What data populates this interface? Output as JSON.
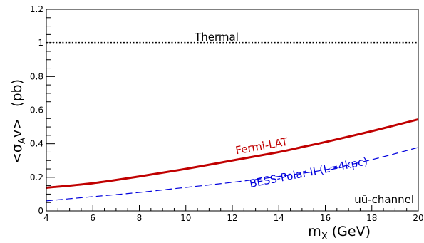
{
  "chart_data": {
    "type": "line",
    "xlabel_main": "m",
    "xlabel_sub": "X",
    "xlabel_rest": " (GeV)",
    "ylabel_pre": "<σ",
    "ylabel_sub": "A",
    "ylabel_post": "v>",
    "ylabel_units": "(pb)",
    "xlim": [
      4,
      20
    ],
    "ylim": [
      0,
      1.2
    ],
    "x_ticks": [
      4,
      6,
      8,
      10,
      12,
      14,
      16,
      18,
      20
    ],
    "y_ticks": [
      0,
      0.2,
      0.4,
      0.6,
      0.8,
      1,
      1.2
    ],
    "x_tick_labels": [
      "4",
      "6",
      "8",
      "10",
      "12",
      "14",
      "16",
      "18",
      "20"
    ],
    "y_tick_labels": [
      "0",
      "0.2",
      "0.4",
      "0.6",
      "0.8",
      "1",
      "1.2"
    ],
    "channel_label": "uū-channel",
    "series": [
      {
        "name": "Thermal",
        "style": "dotted",
        "color": "#000000",
        "x": [
          4,
          20
        ],
        "y": [
          1.0,
          1.0
        ]
      },
      {
        "name": "Fermi-LAT",
        "style": "solid",
        "color": "#c00000",
        "x": [
          4,
          6,
          8,
          10,
          12,
          14,
          15,
          16,
          18,
          20
        ],
        "y": [
          0.138,
          0.165,
          0.205,
          0.25,
          0.3,
          0.35,
          0.38,
          0.41,
          0.475,
          0.545
        ]
      },
      {
        "name": "BESS-Polar II (L=4kpc)",
        "style": "dashed",
        "color": "#0000dd",
        "x": [
          4,
          6,
          8,
          10,
          12,
          14,
          16,
          18,
          20
        ],
        "y": [
          0.06,
          0.085,
          0.11,
          0.14,
          0.17,
          0.205,
          0.245,
          0.305,
          0.378
        ]
      }
    ],
    "annotations": {
      "thermal": "Thermal",
      "fermi": "Fermi-LAT",
      "bess": "BESS-Polar II (L=4kpc)"
    }
  }
}
